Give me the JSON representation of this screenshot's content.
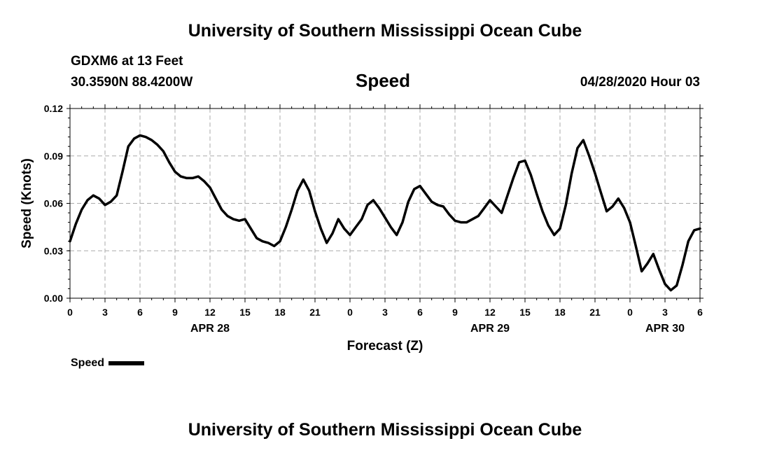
{
  "header": {
    "title": "University of Southern Mississippi Ocean Cube",
    "station": "GDXM6 at 13 Feet",
    "coords": "30.3590N 88.4200W",
    "plot_title": "Speed",
    "timestamp": "04/28/2020 Hour 03"
  },
  "footer": {
    "title": "University of Southern Mississippi Ocean Cube"
  },
  "legend": {
    "label": "Speed"
  },
  "colors": {
    "line": "#000000",
    "grid": "#aaaaaa"
  },
  "chart_data": {
    "type": "line",
    "title": "Speed",
    "xlabel": "Forecast (Z)",
    "ylabel": "Speed (Knots)",
    "xlim": [
      0,
      54
    ],
    "ylim": [
      0,
      0.12
    ],
    "yticks": [
      "0.00",
      "0.03",
      "0.06",
      "0.09",
      "0.12"
    ],
    "ytick_values": [
      0,
      0.03,
      0.06,
      0.09,
      0.12
    ],
    "xtick_labels": [
      "0",
      "3",
      "6",
      "9",
      "12",
      "15",
      "18",
      "21",
      "0",
      "3",
      "6",
      "9",
      "12",
      "15",
      "18",
      "21",
      "0",
      "3",
      "6"
    ],
    "date_labels": [
      {
        "label": "APR 28",
        "hour": 12
      },
      {
        "label": "APR 29",
        "hour": 36
      },
      {
        "label": "APR 30",
        "hour": 51
      }
    ],
    "grid": true,
    "series": [
      {
        "name": "Speed",
        "x": [
          0,
          0.5,
          1,
          1.5,
          2,
          2.5,
          3,
          3.5,
          4,
          4.5,
          5,
          5.5,
          6,
          6.5,
          7,
          7.5,
          8,
          8.5,
          9,
          9.5,
          10,
          10.5,
          11,
          11.5,
          12,
          12.5,
          13,
          13.5,
          14,
          14.5,
          15,
          15.5,
          16,
          16.5,
          17,
          17.5,
          18,
          18.5,
          19,
          19.5,
          20,
          20.5,
          21,
          21.5,
          22,
          22.5,
          23,
          23.5,
          24,
          24.5,
          25,
          25.5,
          26,
          26.5,
          27,
          27.5,
          28,
          28.5,
          29,
          29.5,
          30,
          30.5,
          31,
          31.5,
          32,
          32.5,
          33,
          33.5,
          34,
          34.5,
          35,
          35.5,
          36,
          36.5,
          37,
          37.5,
          38,
          38.5,
          39,
          39.5,
          40,
          40.5,
          41,
          41.5,
          42,
          42.5,
          43,
          43.5,
          44,
          44.5,
          45,
          45.5,
          46,
          46.5,
          47,
          47.5,
          48,
          48.5,
          49,
          49.5,
          50,
          50.5,
          51,
          51.5,
          52,
          52.5,
          53,
          53.5,
          54
        ],
        "y": [
          0.036,
          0.047,
          0.056,
          0.062,
          0.065,
          0.063,
          0.059,
          0.061,
          0.065,
          0.08,
          0.096,
          0.101,
          0.103,
          0.102,
          0.1,
          0.097,
          0.093,
          0.086,
          0.08,
          0.077,
          0.076,
          0.076,
          0.077,
          0.074,
          0.07,
          0.063,
          0.056,
          0.052,
          0.05,
          0.049,
          0.05,
          0.044,
          0.038,
          0.036,
          0.035,
          0.033,
          0.036,
          0.045,
          0.056,
          0.068,
          0.075,
          0.068,
          0.055,
          0.044,
          0.035,
          0.041,
          0.05,
          0.044,
          0.04,
          0.045,
          0.05,
          0.059,
          0.062,
          0.057,
          0.051,
          0.045,
          0.04,
          0.048,
          0.061,
          0.069,
          0.071,
          0.066,
          0.061,
          0.059,
          0.058,
          0.053,
          0.049,
          0.048,
          0.048,
          0.05,
          0.052,
          0.057,
          0.062,
          0.058,
          0.054,
          0.065,
          0.076,
          0.086,
          0.087,
          0.078,
          0.066,
          0.055,
          0.046,
          0.04,
          0.044,
          0.059,
          0.079,
          0.095,
          0.1,
          0.09,
          0.079,
          0.067,
          0.055,
          0.058,
          0.063,
          0.057,
          0.048,
          0.033,
          0.017,
          0.022,
          0.028,
          0.018,
          0.009,
          0.005,
          0.008,
          0.021,
          0.036,
          0.043,
          0.044
        ]
      }
    ]
  }
}
